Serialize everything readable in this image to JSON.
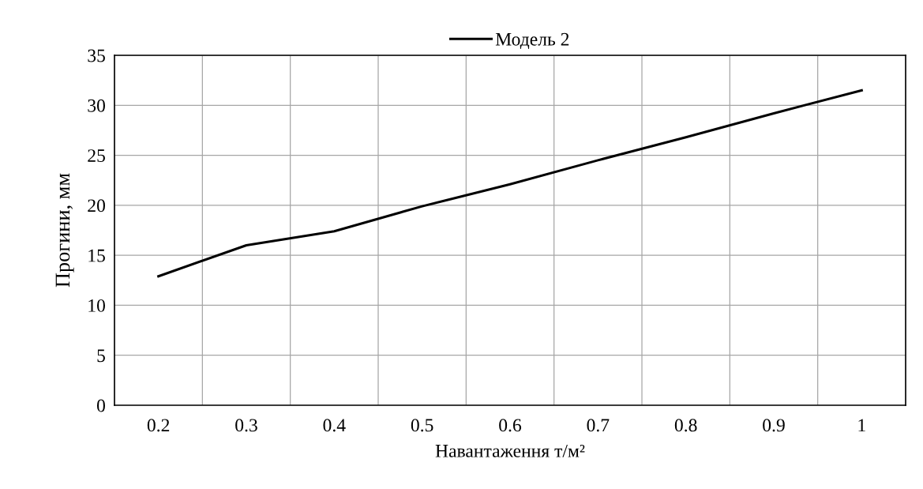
{
  "chart_data": {
    "type": "line",
    "xlabel": "Навантаження т/м²",
    "ylabel": "Прогини, мм",
    "categories": [
      "0.2",
      "0.3",
      "0.4",
      "0.5",
      "0.6",
      "0.7",
      "0.8",
      "0.9",
      "1"
    ],
    "series": [
      {
        "name": "Модель 2",
        "color": "#000000",
        "values": [
          12.9,
          16.0,
          17.4,
          19.9,
          22.1,
          24.5,
          26.8,
          29.2,
          31.5
        ]
      }
    ],
    "ylim": [
      0,
      35
    ],
    "yticks": [
      0,
      5,
      10,
      15,
      20,
      25,
      30,
      35
    ],
    "grid": true,
    "legend": "top",
    "marker": "none",
    "line_style": "solid"
  }
}
